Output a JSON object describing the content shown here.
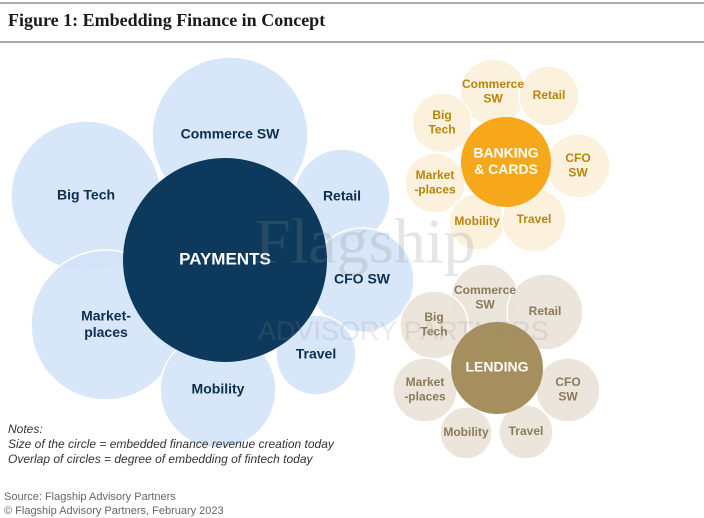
{
  "header": {
    "title": "Figure 1: Embedding Finance in Concept"
  },
  "watermark": {
    "brand": "Flagship",
    "tagline": "ADVISORY PARTNERS"
  },
  "clusters": [
    {
      "center": {
        "lines": [
          "PAYMENTS"
        ]
      },
      "center_color": "#0d3a5c",
      "center_text": "#ffffff",
      "petal_color": "#d4e4f7",
      "petal_text": "#0d2f4f",
      "petals": [
        {
          "lines": [
            "Commerce SW"
          ]
        },
        {
          "lines": [
            "Big Tech"
          ]
        },
        {
          "lines": [
            "Retail"
          ]
        },
        {
          "lines": [
            "CFO SW"
          ]
        },
        {
          "lines": [
            "Market-",
            "places"
          ]
        },
        {
          "lines": [
            "Travel"
          ]
        },
        {
          "lines": [
            "Mobility"
          ]
        }
      ]
    },
    {
      "center": {
        "lines": [
          "BANKING",
          "& CARDS"
        ]
      },
      "center_color": "#f6a81a",
      "center_text": "#ffffff",
      "petal_color": "#fcf0da",
      "petal_text": "#b88508",
      "petals": [
        {
          "lines": [
            "Commerce",
            "SW"
          ]
        },
        {
          "lines": [
            "Retail"
          ]
        },
        {
          "lines": [
            "Big",
            "Tech"
          ]
        },
        {
          "lines": [
            "CFO",
            "SW"
          ]
        },
        {
          "lines": [
            "Market",
            "-places"
          ]
        },
        {
          "lines": [
            "Mobility"
          ]
        },
        {
          "lines": [
            "Travel"
          ]
        }
      ]
    },
    {
      "center": {
        "lines": [
          "LENDING"
        ]
      },
      "center_color": "#a68f5f",
      "center_text": "#ffffff",
      "petal_color": "#eae3d8",
      "petal_text": "#8a7a5a",
      "petals": [
        {
          "lines": [
            "Commerce",
            "SW"
          ]
        },
        {
          "lines": [
            "Big",
            "Tech"
          ]
        },
        {
          "lines": [
            "Retail"
          ]
        },
        {
          "lines": [
            "Market",
            "-places"
          ]
        },
        {
          "lines": [
            "CFO",
            "SW"
          ]
        },
        {
          "lines": [
            "Mobility"
          ]
        },
        {
          "lines": [
            "Travel"
          ]
        }
      ]
    }
  ],
  "notes": [
    "Notes:",
    "Size of the circle = embedded  finance revenue creation today",
    "Overlap of circles = degree of embedding  of fintech today"
  ],
  "source": [
    "Source: Flagship Advisory Partners",
    "© Flagship Advisory Partners, February 2023"
  ]
}
